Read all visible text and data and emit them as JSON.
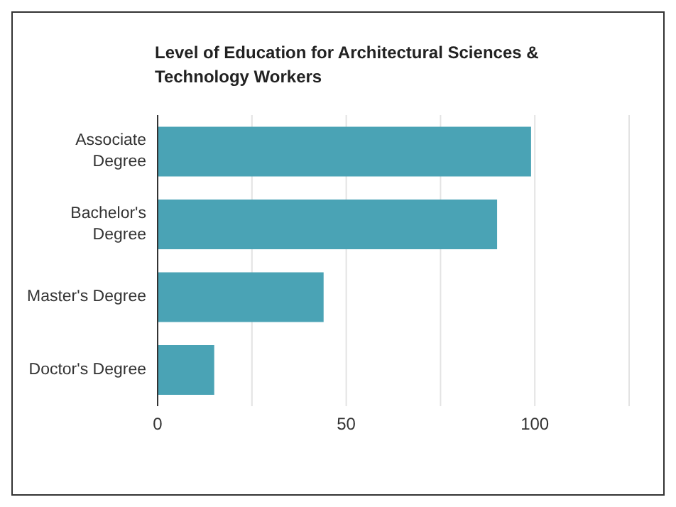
{
  "chart_data": {
    "type": "bar",
    "title": "Level of Education for Architectural Sciences & Technology Workers",
    "orientation": "horizontal",
    "categories": [
      "Associate Degree",
      "Bachelor's Degree",
      "Master's Degree",
      "Doctor's Degree"
    ],
    "values": [
      99,
      90,
      44,
      15
    ],
    "color": "#4aa3b5",
    "xlim": [
      0,
      125
    ],
    "xticks": [
      0,
      {
        "value": 25,
        "label": null
      },
      50,
      {
        "value": 75,
        "label": null
      },
      100,
      {
        "value": 125,
        "label": null
      }
    ],
    "grid": "x"
  }
}
